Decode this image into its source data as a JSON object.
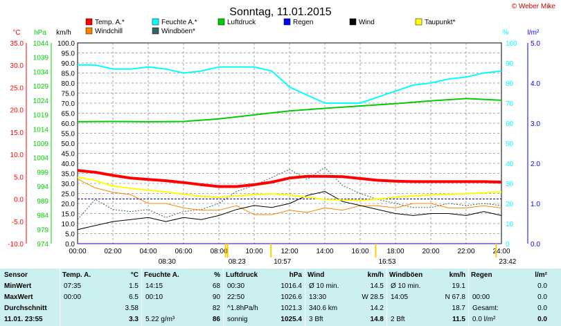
{
  "title": "Sonntag, 11.01.2015",
  "brand": "© Weber Mike",
  "colors": {
    "temp": "#ff0000",
    "humidity": "#00ffff",
    "pressure": "#00cc00",
    "rain": "#0000ff",
    "wind": "#000000",
    "dewpoint": "#ffff00",
    "windchill": "#ff8000",
    "gust": "#336666"
  },
  "chart_data": {
    "type": "line",
    "legend": [
      {
        "name": "Temp. A.*",
        "color": "#ff0000"
      },
      {
        "name": "Feuchte A.*",
        "color": "#00ffff"
      },
      {
        "name": "Luftdruck",
        "color": "#00cc00"
      },
      {
        "name": "Regen",
        "color": "#0000ff"
      },
      {
        "name": "Wind",
        "color": "#000000"
      },
      {
        "name": "Taupunkt*",
        "color": "#ffff00"
      },
      {
        "name": "Windchill",
        "color": "#ff8000"
      },
      {
        "name": "Windböen*",
        "color": "#336666"
      }
    ],
    "axes": {
      "temp": {
        "unit": "°C",
        "ticks": [
          "35.0",
          "30.0",
          "25.0",
          "20.0",
          "15.0",
          "10.0",
          "5.0",
          "0.0",
          "-5.0",
          "-10.0"
        ],
        "range": [
          -10,
          35
        ]
      },
      "pressure": {
        "unit": "hPa",
        "ticks": [
          "1044",
          "1039",
          "1034",
          "1029",
          "1024",
          "1019",
          "1014",
          "1009",
          "1004",
          "999",
          "994",
          "989",
          "984",
          "979",
          "974"
        ],
        "range": [
          974,
          1044
        ]
      },
      "wind": {
        "unit": "km/h",
        "ticks": [
          "100.0",
          "95.0",
          "90.0",
          "85.0",
          "80.0",
          "75.0",
          "70.0",
          "65.0",
          "60.0",
          "55.0",
          "50.0",
          "45.0",
          "40.0",
          "35.0",
          "30.0",
          "25.0",
          "20.0",
          "15.0",
          "10.0",
          "5.0",
          "0.0"
        ],
        "range": [
          0,
          100
        ]
      },
      "humidity": {
        "unit": "%",
        "ticks": [
          "100",
          "90",
          "80",
          "70",
          "60",
          "50",
          "40",
          "30",
          "20",
          "10",
          "0"
        ],
        "range": [
          0,
          100
        ]
      },
      "rain": {
        "unit": "l/m²",
        "ticks": [
          "5.0",
          "4.0",
          "3.0",
          "2.0",
          "1.0",
          "0.0"
        ],
        "range": [
          0,
          5
        ]
      }
    },
    "x_ticks": [
      "00:00",
      "02:00",
      "04:00",
      "06:00",
      "08:00",
      "10:00",
      "12:00",
      "14:00",
      "16:00",
      "18:00",
      "20:00",
      "22:00",
      "24:00"
    ],
    "x_range_hours": [
      0,
      24
    ],
    "sun_markers": [
      {
        "label": "08:30",
        "hour": 8.5
      },
      {
        "label": "08:23",
        "hour": 8.38
      },
      {
        "label": "10:57",
        "hour": 10.95
      },
      {
        "label": "16:53",
        "hour": 16.88
      },
      {
        "label": "23:42",
        "hour": 23.7
      }
    ],
    "series": [
      {
        "key": "temp",
        "name": "Temp. A.*",
        "unit": "°C",
        "x": [
          0,
          1,
          2,
          3,
          4,
          5,
          6,
          7,
          8,
          9,
          10,
          11,
          12,
          13,
          14,
          15,
          16,
          17,
          18,
          19,
          20,
          21,
          22,
          23,
          24
        ],
        "y": [
          6.4,
          6.0,
          5.3,
          4.7,
          4.4,
          4.1,
          3.7,
          3.2,
          2.8,
          2.8,
          3.2,
          3.8,
          4.7,
          5.1,
          5.1,
          5.0,
          4.6,
          4.2,
          4.0,
          3.9,
          3.9,
          3.9,
          3.9,
          3.9,
          3.8
        ]
      },
      {
        "key": "humidity",
        "name": "Feuchte A.*",
        "unit": "%",
        "x": [
          0,
          1,
          2,
          3,
          4,
          5,
          6,
          7,
          8,
          9,
          10,
          11,
          12,
          13,
          14,
          15,
          16,
          17,
          18,
          19,
          20,
          21,
          22,
          23,
          24
        ],
        "y": [
          89,
          89,
          87,
          87,
          88,
          87,
          85,
          86,
          88,
          88,
          88,
          86,
          78,
          74,
          70,
          70,
          70,
          73,
          76,
          79,
          80,
          82,
          83,
          85,
          86
        ]
      },
      {
        "key": "pressure",
        "name": "Luftdruck",
        "unit": "hPa",
        "x": [
          0,
          2,
          4,
          6,
          8,
          10,
          12,
          14,
          16,
          18,
          20,
          22,
          24
        ],
        "y": [
          1016.5,
          1016.6,
          1016.5,
          1016.6,
          1017.5,
          1018.9,
          1020.3,
          1021.2,
          1022.0,
          1022.8,
          1023.8,
          1024.6,
          1024.0
        ]
      },
      {
        "key": "dewpoint",
        "name": "Taupunkt*",
        "unit": "°C",
        "x": [
          0,
          1,
          2,
          3,
          4,
          5,
          6,
          7,
          8,
          9,
          10,
          11,
          12,
          13,
          14,
          15,
          16,
          17,
          18,
          19,
          20,
          21,
          22,
          23,
          24
        ],
        "y": [
          4.9,
          4.2,
          2.9,
          2.4,
          2.0,
          1.6,
          1.1,
          0.6,
          0.4,
          0.7,
          1.0,
          1.2,
          0.9,
          0.4,
          -0.1,
          -0.2,
          -0.3,
          0.0,
          0.4,
          0.7,
          0.9,
          1.1,
          1.2,
          1.4,
          1.6
        ]
      },
      {
        "key": "windchill",
        "name": "Windchill",
        "unit": "°C",
        "x": [
          0,
          1,
          2,
          3,
          4,
          5,
          6,
          7,
          8,
          9,
          10,
          11,
          12,
          13,
          14,
          15,
          16,
          17,
          18,
          19,
          20,
          21,
          22,
          23,
          24
        ],
        "y": [
          4.5,
          2.5,
          1.5,
          1.0,
          -1.0,
          -1.0,
          -2.0,
          -2.5,
          -2.5,
          -1.5,
          -3.5,
          -3.5,
          -2.5,
          -3.0,
          -2.0,
          -2.5,
          -1.5,
          -1.5,
          -2.0,
          -1.0,
          -1.0,
          -2.0,
          -2.0,
          -1.5,
          -2.0
        ]
      },
      {
        "key": "wind",
        "name": "Wind",
        "unit": "km/h",
        "x": [
          0,
          1,
          2,
          3,
          4,
          5,
          6,
          7,
          8,
          9,
          10,
          11,
          12,
          13,
          14,
          15,
          16,
          17,
          18,
          19,
          20,
          21,
          22,
          23,
          24
        ],
        "y": [
          7,
          9,
          11,
          12,
          13,
          11,
          13,
          12,
          14,
          17,
          19,
          18,
          20,
          24,
          26,
          21,
          19,
          17,
          15,
          14,
          15,
          15,
          14,
          16,
          14
        ]
      },
      {
        "key": "gust",
        "name": "Windböen*",
        "unit": "km/h",
        "x": [
          0,
          1,
          2,
          3,
          4,
          5,
          6,
          7,
          8,
          9,
          10,
          11,
          12,
          13,
          14,
          15,
          16,
          17,
          18,
          19,
          20,
          21,
          22,
          23,
          24
        ],
        "y": [
          12,
          22,
          17,
          16,
          17,
          13,
          16,
          17,
          20,
          26,
          29,
          33,
          37,
          32,
          38,
          29,
          25,
          22,
          20,
          18,
          18,
          20,
          19,
          20,
          19
        ]
      },
      {
        "key": "rain",
        "name": "Regen",
        "unit": "l/m²",
        "x": [
          0,
          24
        ],
        "y": [
          0.0,
          0.0
        ]
      }
    ]
  },
  "stats": {
    "row_labels": [
      "Sensor",
      "MinWert",
      "MaxWert",
      "Durchschnitt",
      "11.01. 23:55"
    ],
    "columns": [
      {
        "head": "Temp. A.",
        "unit": "°C",
        "rows": [
          [
            "07:35",
            "1.5"
          ],
          [
            "00:00",
            "6.5"
          ],
          [
            "",
            "3.58"
          ],
          [
            "",
            "3.3"
          ]
        ]
      },
      {
        "head": "Feuchte A.",
        "unit": "%",
        "rows": [
          [
            "14:15",
            "68"
          ],
          [
            "00:10",
            "90"
          ],
          [
            "",
            "82"
          ],
          [
            "5.22 g/m³",
            "86"
          ]
        ]
      },
      {
        "head": "Luftdruck",
        "unit": "hPa",
        "rows": [
          [
            "00:30",
            "1016.4"
          ],
          [
            "22:50",
            "1026.6"
          ],
          [
            "^1.8hPa/h",
            "1021.3"
          ],
          [
            "sonnig",
            "1025.4"
          ]
        ]
      },
      {
        "head": "Wind",
        "unit": "km/h",
        "rows": [
          [
            "Ø 10 min.",
            "14.5"
          ],
          [
            "13:30",
            "W 28.5"
          ],
          [
            "340.6 km",
            "14.2"
          ],
          [
            "3 Bft",
            "14.8"
          ]
        ]
      },
      {
        "head": "Windböen",
        "unit": "km/h",
        "rows": [
          [
            "Ø 10 min.",
            "19.1"
          ],
          [
            "14:05",
            "N 67.8"
          ],
          [
            "",
            "18.7"
          ],
          [
            "2 Bft",
            "11.5"
          ]
        ]
      },
      {
        "head": "Regen",
        "unit": "l/m²",
        "rows": [
          [
            "",
            "0.0"
          ],
          [
            "00:00",
            "0.0"
          ],
          [
            "Gesamt:",
            "0.0"
          ],
          [
            "0.0 l/m²",
            "0.0"
          ]
        ]
      }
    ]
  }
}
